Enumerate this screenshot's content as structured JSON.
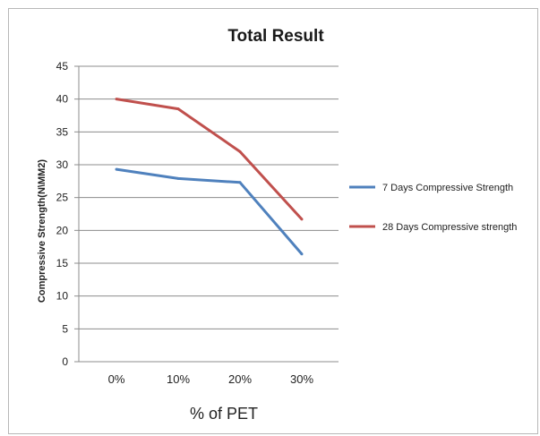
{
  "chart_data": {
    "type": "line",
    "title": "Total Result",
    "xlabel": "% of PET",
    "ylabel": "Compressive Strength(N\\MM2)",
    "categories": [
      "0%",
      "10%",
      "20%",
      "30%"
    ],
    "ylim": [
      0,
      45
    ],
    "yticks": [
      0,
      5,
      10,
      15,
      20,
      25,
      30,
      35,
      40,
      45
    ],
    "grid": true,
    "legend_position": "right",
    "series": [
      {
        "name": "7 Days Compressive Strength",
        "values": [
          29.3,
          27.9,
          27.3,
          16.4
        ],
        "color": "#4f81bd"
      },
      {
        "name": "28 Days Compressive strength",
        "values": [
          40.0,
          38.5,
          32.0,
          21.7
        ],
        "color": "#c0504d"
      }
    ]
  }
}
